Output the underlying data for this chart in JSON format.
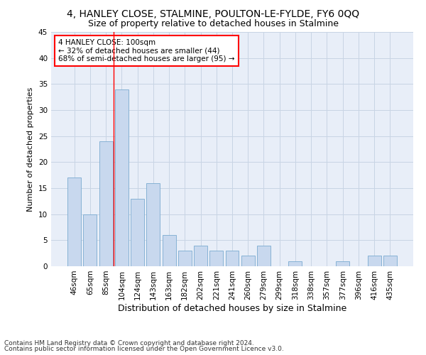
{
  "title": "4, HANLEY CLOSE, STALMINE, POULTON-LE-FYLDE, FY6 0QQ",
  "subtitle": "Size of property relative to detached houses in Stalmine",
  "xlabel": "Distribution of detached houses by size in Stalmine",
  "ylabel": "Number of detached properties",
  "categories": [
    "46sqm",
    "65sqm",
    "85sqm",
    "104sqm",
    "124sqm",
    "143sqm",
    "163sqm",
    "182sqm",
    "202sqm",
    "221sqm",
    "241sqm",
    "260sqm",
    "279sqm",
    "299sqm",
    "318sqm",
    "338sqm",
    "357sqm",
    "377sqm",
    "396sqm",
    "416sqm",
    "435sqm"
  ],
  "values": [
    17,
    10,
    24,
    34,
    13,
    16,
    6,
    3,
    4,
    3,
    3,
    2,
    4,
    0,
    1,
    0,
    0,
    1,
    0,
    2,
    2
  ],
  "bar_color": "#c8d8ee",
  "bar_edge_color": "#7aaad0",
  "red_line_x": 3,
  "annotation_line1": "4 HANLEY CLOSE: 100sqm",
  "annotation_line2": "← 32% of detached houses are smaller (44)",
  "annotation_line3": "68% of semi-detached houses are larger (95) →",
  "footer_line1": "Contains HM Land Registry data © Crown copyright and database right 2024.",
  "footer_line2": "Contains public sector information licensed under the Open Government Licence v3.0.",
  "ylim": [
    0,
    45
  ],
  "yticks": [
    0,
    5,
    10,
    15,
    20,
    25,
    30,
    35,
    40,
    45
  ],
  "grid_color": "#c8d4e4",
  "background_color": "#e8eef8",
  "title_fontsize": 10,
  "subtitle_fontsize": 9,
  "ylabel_fontsize": 8,
  "xlabel_fontsize": 9,
  "tick_fontsize": 7.5,
  "annotation_fontsize": 7.5,
  "footer_fontsize": 6.5
}
